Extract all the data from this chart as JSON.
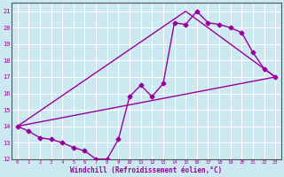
{
  "xlabel": "Windchill (Refroidissement éolien,°C)",
  "bg_color": "#cce8f0",
  "line_color": "#990099",
  "grid_color": "#ffffff",
  "spine_color": "#555555",
  "xlim": [
    -0.5,
    23.5
  ],
  "ylim": [
    12,
    21.5
  ],
  "yticks": [
    12,
    13,
    14,
    15,
    16,
    17,
    18,
    19,
    20,
    21
  ],
  "xticks": [
    0,
    1,
    2,
    3,
    4,
    5,
    6,
    7,
    8,
    9,
    10,
    11,
    12,
    13,
    14,
    15,
    16,
    17,
    18,
    19,
    20,
    21,
    22,
    23
  ],
  "line1_x": [
    0,
    1,
    2,
    3,
    4,
    5,
    6,
    7,
    8,
    9,
    10,
    11,
    12,
    13,
    14,
    15,
    16,
    17,
    18,
    19,
    20,
    21,
    22,
    23
  ],
  "line1_y": [
    14.0,
    13.7,
    13.3,
    13.2,
    13.0,
    12.7,
    12.5,
    12.0,
    12.0,
    13.2,
    15.8,
    16.5,
    15.8,
    16.6,
    20.3,
    20.2,
    21.0,
    20.3,
    20.2,
    20.0,
    19.7,
    18.5,
    17.5,
    17.0
  ],
  "line2_x": [
    0,
    23
  ],
  "line2_y": [
    14.0,
    17.0
  ],
  "line3_x": [
    0,
    15,
    23
  ],
  "line3_y": [
    14.0,
    21.0,
    17.0
  ],
  "marker_size": 2.5,
  "line_width": 1.0
}
